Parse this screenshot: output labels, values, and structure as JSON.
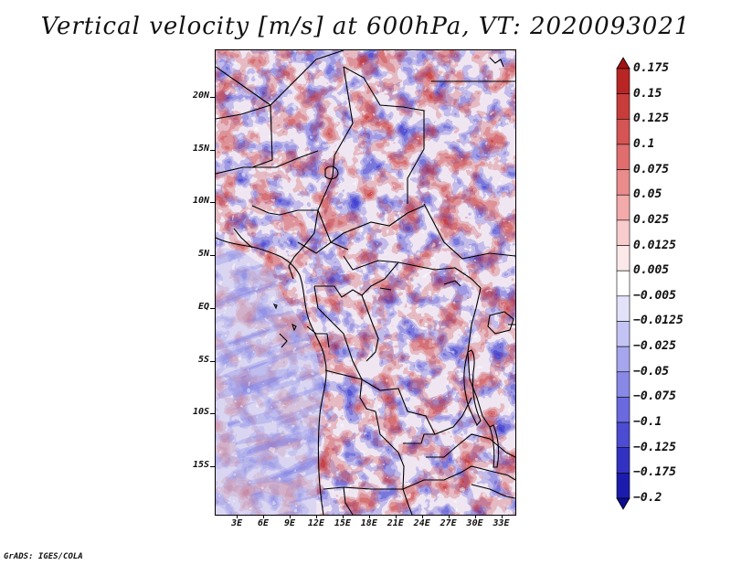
{
  "title": "Vertical velocity [m/s] at 600hPa, VT: 2020093021",
  "credit": "GrADS: IGES/COLA",
  "map": {
    "region": "Central Africa",
    "lat_labels": [
      {
        "lat": 20,
        "label": "20N"
      },
      {
        "lat": 15,
        "label": "15N"
      },
      {
        "lat": 10,
        "label": "10N"
      },
      {
        "lat": 5,
        "label": "5N"
      },
      {
        "lat": 0,
        "label": "EQ"
      },
      {
        "lat": -5,
        "label": "5S"
      },
      {
        "lat": -10,
        "label": "10S"
      },
      {
        "lat": -15,
        "label": "15S"
      }
    ],
    "lon_labels": [
      {
        "lon": 3,
        "label": "3E"
      },
      {
        "lon": 6,
        "label": "6E"
      },
      {
        "lon": 9,
        "label": "9E"
      },
      {
        "lon": 12,
        "label": "12E"
      },
      {
        "lon": 15,
        "label": "15E"
      },
      {
        "lon": 18,
        "label": "18E"
      },
      {
        "lon": 21,
        "label": "21E"
      },
      {
        "lon": 24,
        "label": "24E"
      },
      {
        "lon": 27,
        "label": "27E"
      },
      {
        "lon": 30,
        "label": "30E"
      },
      {
        "lon": 33,
        "label": "33E"
      }
    ],
    "lat_range": [
      -19.5,
      24.5
    ],
    "lon_range": [
      0.5,
      34.5
    ]
  },
  "colorbar": {
    "labels": [
      "0.175",
      "0.15",
      "0.125",
      "0.1",
      "0.075",
      "0.05",
      "0.025",
      "0.0125",
      "0.005",
      "−0.005",
      "−0.0125",
      "−0.025",
      "−0.05",
      "−0.075",
      "−0.1",
      "−0.125",
      "−0.175",
      "−0.2"
    ],
    "colors": [
      "#a31414",
      "#b82525",
      "#c83c3c",
      "#d55454",
      "#e06e6e",
      "#ea8c8c",
      "#f2aaaa",
      "#f8cccc",
      "#fce8e8",
      "#ffffff",
      "#e2e2fa",
      "#c4c4f4",
      "#a6a6ee",
      "#8888e6",
      "#6a6ade",
      "#4c4cd2",
      "#3232c2",
      "#1c1cac",
      "#0c0c94"
    ]
  }
}
